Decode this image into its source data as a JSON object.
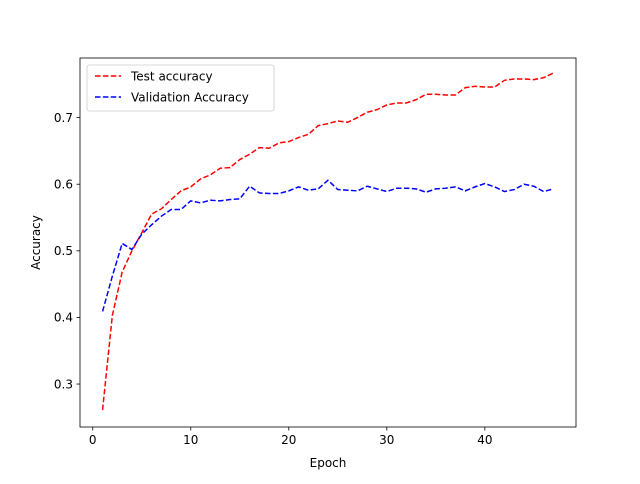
{
  "chart_data": {
    "type": "line",
    "title": "",
    "xlabel": "Epoch",
    "ylabel": "Accuracy",
    "xlim": [
      -1.3,
      49.3
    ],
    "ylim": [
      0.2355,
      0.7895
    ],
    "xticks": [
      0,
      10,
      20,
      30,
      40
    ],
    "yticks": [
      0.3,
      0.4,
      0.5,
      0.6,
      0.7
    ],
    "grid": false,
    "legend": "top-left",
    "series": [
      {
        "name": "Test accuracy",
        "color": "#ff0000",
        "line_style": "dashed",
        "x": [
          1,
          2,
          3,
          4,
          5,
          6,
          7,
          8,
          9,
          10,
          11,
          12,
          13,
          14,
          15,
          16,
          17,
          18,
          19,
          20,
          21,
          22,
          23,
          24,
          25,
          26,
          27,
          28,
          29,
          30,
          31,
          32,
          33,
          34,
          35,
          36,
          37,
          38,
          39,
          40,
          41,
          42,
          43,
          44,
          45,
          46,
          47
        ],
        "values": [
          0.261,
          0.403,
          0.468,
          0.5,
          0.527,
          0.555,
          0.563,
          0.577,
          0.59,
          0.596,
          0.608,
          0.614,
          0.624,
          0.625,
          0.637,
          0.645,
          0.655,
          0.654,
          0.662,
          0.664,
          0.67,
          0.675,
          0.688,
          0.691,
          0.695,
          0.693,
          0.7,
          0.708,
          0.712,
          0.719,
          0.722,
          0.722,
          0.727,
          0.735,
          0.735,
          0.734,
          0.734,
          0.745,
          0.747,
          0.746,
          0.746,
          0.756,
          0.758,
          0.758,
          0.757,
          0.76,
          0.767
        ]
      },
      {
        "name": "Validation Accuracy",
        "color": "#0000ff",
        "line_style": "dashed",
        "x": [
          1,
          2,
          3,
          4,
          5,
          6,
          7,
          8,
          9,
          10,
          11,
          12,
          13,
          14,
          15,
          16,
          17,
          18,
          19,
          20,
          21,
          22,
          23,
          24,
          25,
          26,
          27,
          28,
          29,
          30,
          31,
          32,
          33,
          34,
          35,
          36,
          37,
          38,
          39,
          40,
          41,
          42,
          43,
          44,
          45,
          46,
          47
        ],
        "values": [
          0.409,
          0.462,
          0.511,
          0.502,
          0.525,
          0.539,
          0.552,
          0.562,
          0.562,
          0.575,
          0.572,
          0.576,
          0.575,
          0.577,
          0.578,
          0.597,
          0.587,
          0.586,
          0.586,
          0.59,
          0.596,
          0.591,
          0.593,
          0.606,
          0.592,
          0.591,
          0.59,
          0.597,
          0.593,
          0.589,
          0.594,
          0.594,
          0.593,
          0.588,
          0.593,
          0.594,
          0.596,
          0.59,
          0.596,
          0.601,
          0.596,
          0.589,
          0.592,
          0.6,
          0.597,
          0.589,
          0.593
        ]
      }
    ]
  }
}
